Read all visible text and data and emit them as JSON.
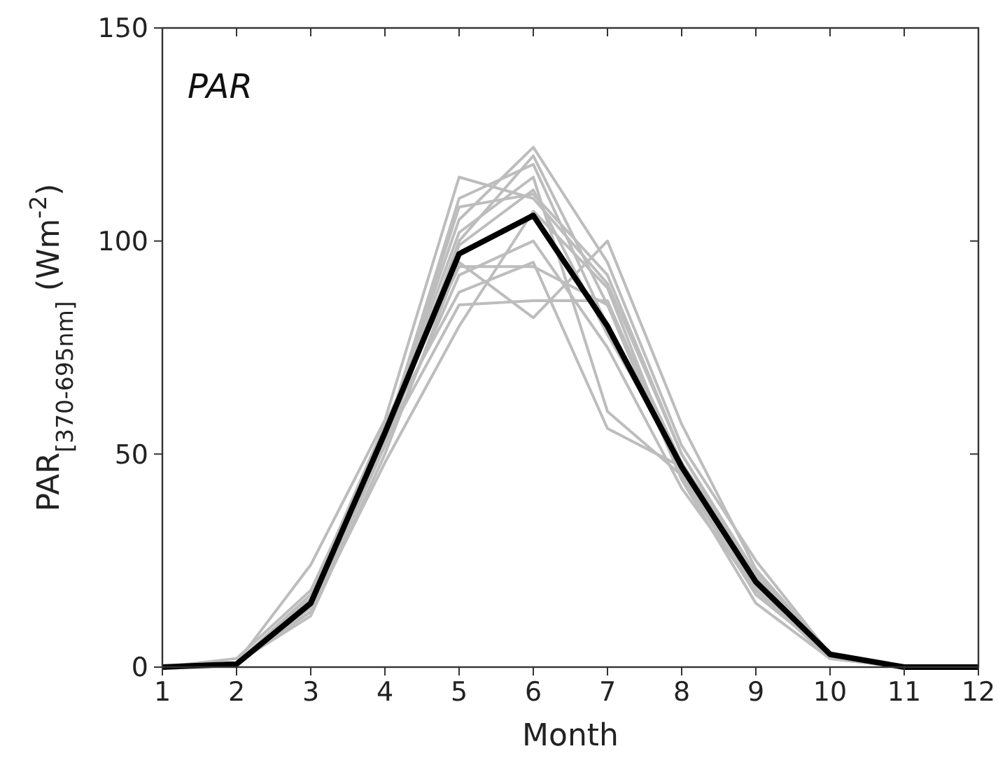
{
  "chart_data": {
    "type": "line",
    "title": "PAR",
    "xlabel": "Month",
    "ylabel": "PAR$_{[370-695nm]}$ (Wm$^{-2}$)",
    "x": [
      1,
      2,
      3,
      4,
      5,
      6,
      7,
      8,
      9,
      10,
      11,
      12
    ],
    "xlim": [
      1,
      12
    ],
    "xticks": [
      1,
      2,
      3,
      4,
      5,
      6,
      7,
      8,
      9,
      10,
      11,
      12
    ],
    "ylim": [
      0,
      150
    ],
    "yticks": [
      0,
      50,
      100,
      150
    ],
    "grid": false,
    "marker": "none",
    "line_style": "solid",
    "series": [
      {
        "color": "#bdbdbd",
        "values": [
          0,
          1,
          24,
          58,
          115,
          110,
          90,
          50,
          22,
          3,
          0,
          0
        ]
      },
      {
        "color": "#bdbdbd",
        "values": [
          0,
          2,
          18,
          55,
          105,
          122,
          95,
          52,
          25,
          3,
          0,
          0
        ]
      },
      {
        "color": "#bdbdbd",
        "values": [
          0,
          1,
          14,
          52,
          100,
          120,
          85,
          48,
          20,
          3,
          0,
          0
        ]
      },
      {
        "color": "#bdbdbd",
        "values": [
          0,
          1,
          12,
          50,
          95,
          82,
          100,
          57,
          23,
          3,
          0,
          0
        ]
      },
      {
        "color": "#bdbdbd",
        "values": [
          0,
          1,
          16,
          56,
          88,
          95,
          56,
          47,
          18,
          2,
          0,
          0
        ]
      },
      {
        "color": "#bdbdbd",
        "values": [
          0,
          1,
          15,
          55,
          102,
          115,
          60,
          45,
          19,
          3,
          0,
          0
        ]
      },
      {
        "color": "#bdbdbd",
        "values": [
          0,
          1,
          13,
          48,
          80,
          107,
          89,
          45,
          17,
          3,
          0,
          0
        ]
      },
      {
        "color": "#bdbdbd",
        "values": [
          0,
          1,
          15,
          54,
          108,
          111,
          92,
          50,
          21,
          3,
          0,
          0
        ]
      },
      {
        "color": "#bdbdbd",
        "values": [
          0,
          1,
          17,
          57,
          94,
          94,
          85,
          44,
          15,
          2,
          0,
          0
        ]
      },
      {
        "color": "#bdbdbd",
        "values": [
          0,
          1,
          14,
          53,
          85,
          86,
          86,
          46,
          20,
          3,
          0,
          0
        ]
      },
      {
        "color": "#bdbdbd",
        "values": [
          0,
          1,
          16,
          55,
          99,
          112,
          78,
          48,
          22,
          3,
          0,
          0
        ]
      },
      {
        "color": "#bdbdbd",
        "values": [
          0,
          1,
          15,
          54,
          110,
          118,
          80,
          46,
          19,
          3,
          0,
          0
        ]
      },
      {
        "color": "#bdbdbd",
        "values": [
          0,
          1,
          13,
          52,
          92,
          100,
          75,
          42,
          18,
          3,
          0,
          0
        ]
      },
      {
        "color": "#000000",
        "values": [
          0,
          0.7,
          15,
          55,
          97,
          106,
          80,
          47,
          20,
          3,
          0,
          0
        ]
      }
    ]
  }
}
